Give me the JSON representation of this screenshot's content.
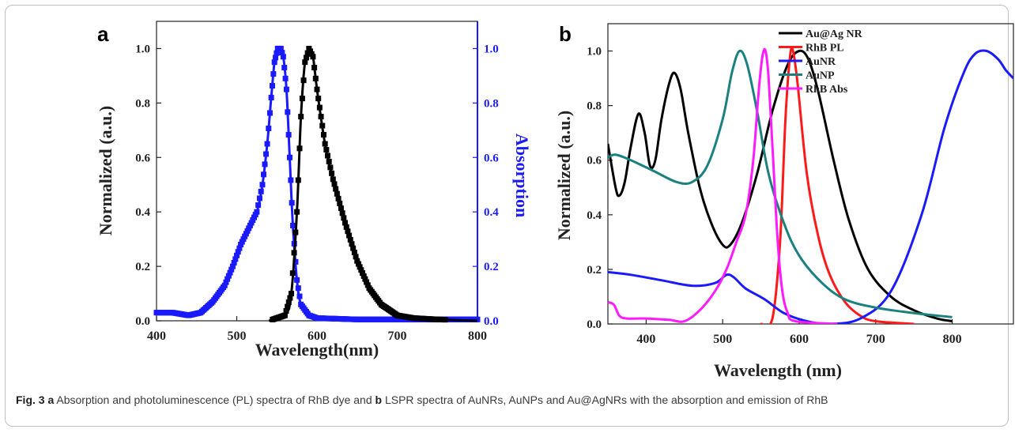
{
  "figure": {
    "caption": {
      "fig_label": "Fig. 3",
      "a_label": "a",
      "text_a": "Absorption and photoluminescence (PL) spectra of RhB dye and",
      "b_label": "b",
      "text_b": "LSPR spectra of AuNRs, AuNPs and Au@AgNRs with the absorption and emission of RhB"
    }
  },
  "chart_data": [
    {
      "panel_label": "a",
      "type": "scatter",
      "xlabel": "Wavelength(nm)",
      "ylabel": "Normalized (a.u.)",
      "ylabel_right": "Absorption",
      "xlim": [
        400,
        800
      ],
      "ylim": [
        0,
        1.1
      ],
      "ylim_right": [
        0,
        1.1
      ],
      "xticks": [
        400,
        500,
        600,
        700,
        800
      ],
      "yticks": [
        0.0,
        0.2,
        0.4,
        0.6,
        0.8,
        1.0
      ],
      "grid": false,
      "colors": {
        "left_axis": "#222222",
        "right_axis": "#1a1aff"
      },
      "series": [
        {
          "color": "#1a1aff",
          "axis": "right",
          "points": [
            [
              400,
              0.03
            ],
            [
              420,
              0.03
            ],
            [
              440,
              0.02
            ],
            [
              455,
              0.03
            ],
            [
              470,
              0.07
            ],
            [
              485,
              0.13
            ],
            [
              495,
              0.2
            ],
            [
              505,
              0.28
            ],
            [
              515,
              0.34
            ],
            [
              525,
              0.4
            ],
            [
              532,
              0.5
            ],
            [
              538,
              0.65
            ],
            [
              543,
              0.82
            ],
            [
              547,
              0.95
            ],
            [
              551,
              1.0
            ],
            [
              555,
              1.0
            ],
            [
              558,
              0.97
            ],
            [
              562,
              0.85
            ],
            [
              566,
              0.6
            ],
            [
              570,
              0.35
            ],
            [
              575,
              0.15
            ],
            [
              580,
              0.06
            ],
            [
              590,
              0.02
            ],
            [
              600,
              0.01
            ],
            [
              650,
              0.005
            ],
            [
              800,
              0.005
            ]
          ]
        },
        {
          "color": "#000000",
          "axis": "left",
          "points": [
            [
              540,
              0.0
            ],
            [
              560,
              0.02
            ],
            [
              568,
              0.1
            ],
            [
              575,
              0.4
            ],
            [
              580,
              0.75
            ],
            [
              585,
              0.95
            ],
            [
              590,
              1.0
            ],
            [
              595,
              0.97
            ],
            [
              600,
              0.85
            ],
            [
              610,
              0.65
            ],
            [
              620,
              0.52
            ],
            [
              635,
              0.36
            ],
            [
              650,
              0.22
            ],
            [
              665,
              0.12
            ],
            [
              680,
              0.06
            ],
            [
              700,
              0.02
            ],
            [
              720,
              0.01
            ],
            [
              750,
              0.005
            ],
            [
              800,
              0.0
            ]
          ]
        }
      ]
    },
    {
      "panel_label": "b",
      "type": "line",
      "xlabel": "Wavelength (nm)",
      "ylabel": "Normalized (a.u.)",
      "xlim": [
        350,
        880
      ],
      "ylim": [
        0,
        1.1
      ],
      "xticks": [
        400,
        500,
        600,
        700,
        800
      ],
      "yticks": [
        0.0,
        0.2,
        0.4,
        0.6,
        0.8,
        1.0
      ],
      "grid": false,
      "legend_position": "top-right",
      "series": [
        {
          "name": "Au@Ag NR",
          "color": "#000000",
          "points": [
            [
              350,
              0.66
            ],
            [
              360,
              0.5
            ],
            [
              365,
              0.47
            ],
            [
              372,
              0.52
            ],
            [
              380,
              0.65
            ],
            [
              390,
              0.77
            ],
            [
              398,
              0.7
            ],
            [
              405,
              0.58
            ],
            [
              412,
              0.6
            ],
            [
              420,
              0.75
            ],
            [
              430,
              0.88
            ],
            [
              437,
              0.92
            ],
            [
              445,
              0.86
            ],
            [
              455,
              0.7
            ],
            [
              470,
              0.5
            ],
            [
              485,
              0.37
            ],
            [
              500,
              0.29
            ],
            [
              510,
              0.29
            ],
            [
              525,
              0.37
            ],
            [
              545,
              0.55
            ],
            [
              565,
              0.78
            ],
            [
              585,
              0.95
            ],
            [
              600,
              1.0
            ],
            [
              612,
              0.97
            ],
            [
              625,
              0.85
            ],
            [
              645,
              0.6
            ],
            [
              665,
              0.38
            ],
            [
              690,
              0.2
            ],
            [
              720,
              0.1
            ],
            [
              750,
              0.05
            ],
            [
              780,
              0.02
            ],
            [
              800,
              0.01
            ]
          ]
        },
        {
          "name": "RhB PL",
          "color": "#ff1a1a",
          "points": [
            [
              550,
              0.0
            ],
            [
              565,
              0.02
            ],
            [
              575,
              0.3
            ],
            [
              582,
              0.75
            ],
            [
              588,
              0.98
            ],
            [
              592,
              1.0
            ],
            [
              598,
              0.88
            ],
            [
              610,
              0.55
            ],
            [
              625,
              0.32
            ],
            [
              640,
              0.18
            ],
            [
              660,
              0.08
            ],
            [
              680,
              0.03
            ],
            [
              700,
              0.01
            ],
            [
              750,
              0.0
            ]
          ]
        },
        {
          "name": "AuNR",
          "color": "#1a1aff",
          "points": [
            [
              350,
              0.19
            ],
            [
              380,
              0.18
            ],
            [
              420,
              0.16
            ],
            [
              460,
              0.14
            ],
            [
              490,
              0.15
            ],
            [
              505,
              0.18
            ],
            [
              515,
              0.17
            ],
            [
              530,
              0.13
            ],
            [
              555,
              0.09
            ],
            [
              580,
              0.04
            ],
            [
              610,
              0.01
            ],
            [
              640,
              0.0
            ],
            [
              680,
              0.02
            ],
            [
              720,
              0.12
            ],
            [
              760,
              0.4
            ],
            [
              790,
              0.72
            ],
            [
              815,
              0.92
            ],
            [
              830,
              0.99
            ],
            [
              845,
              1.0
            ],
            [
              860,
              0.97
            ],
            [
              870,
              0.93
            ],
            [
              880,
              0.9
            ]
          ]
        },
        {
          "name": "AuNP",
          "color": "#1a8080",
          "points": [
            [
              350,
              0.61
            ],
            [
              360,
              0.62
            ],
            [
              380,
              0.6
            ],
            [
              410,
              0.56
            ],
            [
              440,
              0.52
            ],
            [
              460,
              0.52
            ],
            [
              480,
              0.58
            ],
            [
              500,
              0.75
            ],
            [
              512,
              0.92
            ],
            [
              522,
              1.0
            ],
            [
              532,
              0.95
            ],
            [
              545,
              0.78
            ],
            [
              560,
              0.55
            ],
            [
              580,
              0.37
            ],
            [
              600,
              0.25
            ],
            [
              630,
              0.15
            ],
            [
              660,
              0.09
            ],
            [
              700,
              0.06
            ],
            [
              750,
              0.04
            ],
            [
              800,
              0.025
            ]
          ]
        },
        {
          "name": "RhB Abs",
          "color": "#ff1aff",
          "points": [
            [
              350,
              0.08
            ],
            [
              358,
              0.07
            ],
            [
              365,
              0.03
            ],
            [
              375,
              0.02
            ],
            [
              400,
              0.02
            ],
            [
              430,
              0.015
            ],
            [
              450,
              0.01
            ],
            [
              470,
              0.05
            ],
            [
              490,
              0.12
            ],
            [
              505,
              0.2
            ],
            [
              518,
              0.3
            ],
            [
              530,
              0.4
            ],
            [
              540,
              0.6
            ],
            [
              547,
              0.85
            ],
            [
              552,
              0.98
            ],
            [
              556,
              1.0
            ],
            [
              560,
              0.9
            ],
            [
              566,
              0.6
            ],
            [
              572,
              0.3
            ],
            [
              578,
              0.12
            ],
            [
              585,
              0.04
            ],
            [
              595,
              0.01
            ],
            [
              650,
              0.0
            ]
          ]
        }
      ]
    }
  ]
}
